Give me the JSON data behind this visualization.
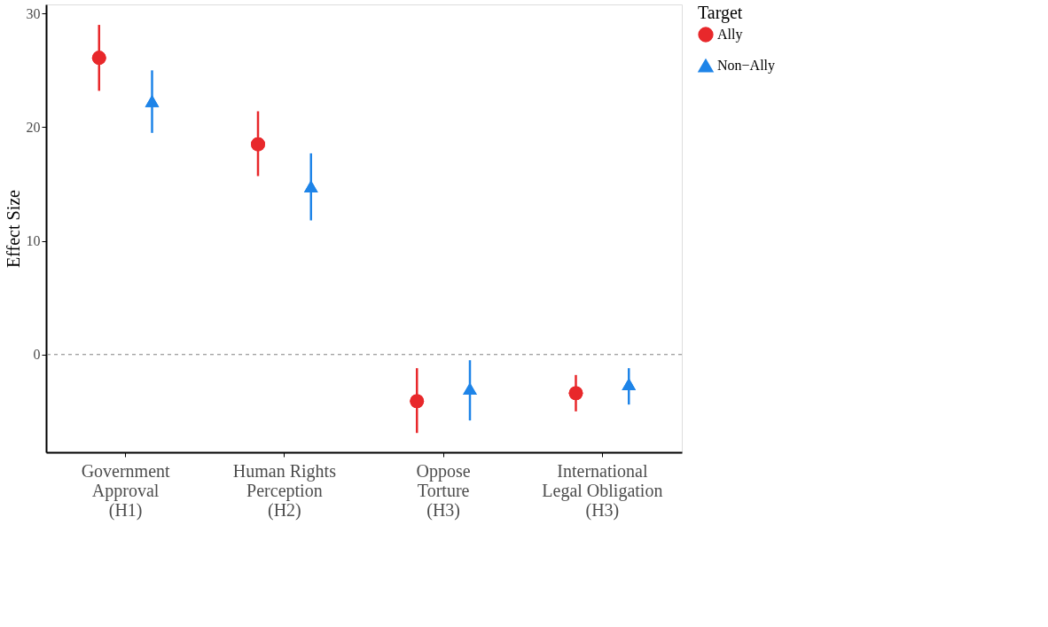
{
  "chart_data": {
    "type": "scatter",
    "ylabel": "Effect Size",
    "legend_title": "Target",
    "legend": "right",
    "grid": false,
    "categories": [
      "Government\nApproval\n(H1)",
      "Human Rights\nPerception\n(H2)",
      "Oppose\nTorture\n(H3)",
      "International\nLegal Obligation\n(H3)"
    ],
    "ylim": [
      -8.6,
      30.8
    ],
    "yticks": [
      0,
      10,
      20,
      30
    ],
    "series": [
      {
        "name": "Ally",
        "color": "#e8282b",
        "marker": "circle",
        "values": [
          26.1,
          18.5,
          -4.1,
          -3.4
        ],
        "errors": [
          [
            23.2,
            29.0
          ],
          [
            15.7,
            21.4
          ],
          [
            -6.9,
            -1.2
          ],
          [
            -5.0,
            -1.8
          ]
        ]
      },
      {
        "name": "Non−Ally",
        "color": "#1e84e8",
        "marker": "triangle",
        "values": [
          22.3,
          14.8,
          -3.0,
          -2.6
        ],
        "errors": [
          [
            19.5,
            25.0
          ],
          [
            11.8,
            17.7
          ],
          [
            -5.8,
            -0.5
          ],
          [
            -4.4,
            -1.2
          ]
        ]
      }
    ],
    "ref_lines": [
      {
        "axis": "y",
        "value": 0,
        "line_style": "dashed",
        "color": "#808080"
      }
    ]
  }
}
